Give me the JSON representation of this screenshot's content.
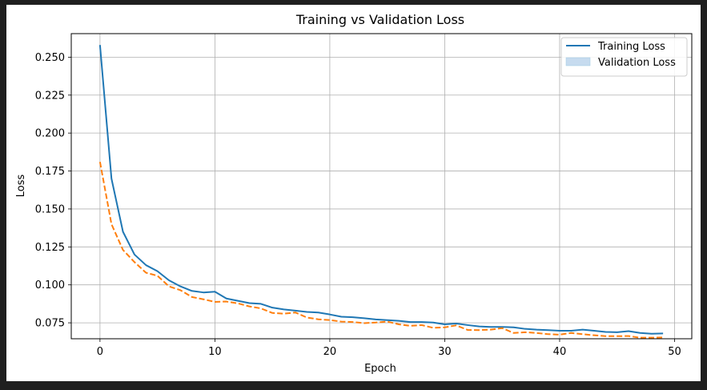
{
  "chart_data": {
    "type": "line",
    "title": "Training vs Validation Loss",
    "xlabel": "Epoch",
    "ylabel": "Loss",
    "xlim": [
      -2.5,
      51.5
    ],
    "ylim": [
      0.0645,
      0.2655
    ],
    "xticks": [
      0,
      10,
      20,
      30,
      40,
      50
    ],
    "yticks": [
      0.075,
      0.1,
      0.125,
      0.15,
      0.175,
      0.2,
      0.225,
      0.25
    ],
    "ytick_labels": [
      "0.075",
      "0.100",
      "0.125",
      "0.150",
      "0.175",
      "0.200",
      "0.225",
      "0.250"
    ],
    "xtick_labels": [
      "0",
      "10",
      "20",
      "30",
      "40",
      "50"
    ],
    "grid": true,
    "legend_position": "top-right",
    "legend": [
      {
        "label": "Training Loss",
        "marker": "line",
        "color": "#1f77b4"
      },
      {
        "label": "Validation Loss",
        "marker": "patch",
        "color": "#c6dbef"
      }
    ],
    "x": [
      0,
      1,
      2,
      3,
      4,
      5,
      6,
      7,
      8,
      9,
      10,
      11,
      12,
      13,
      14,
      15,
      16,
      17,
      18,
      19,
      20,
      21,
      22,
      23,
      24,
      25,
      26,
      27,
      28,
      29,
      30,
      31,
      32,
      33,
      34,
      35,
      36,
      37,
      38,
      39,
      40,
      41,
      42,
      43,
      44,
      45,
      46,
      47,
      48,
      49
    ],
    "series": [
      {
        "name": "Training Loss",
        "color": "#1f77b4",
        "style": "solid",
        "values": [
          0.258,
          0.17,
          0.135,
          0.12,
          0.113,
          0.109,
          0.103,
          0.099,
          0.096,
          0.095,
          0.0955,
          0.091,
          0.0895,
          0.088,
          0.0875,
          0.085,
          0.0838,
          0.083,
          0.0822,
          0.0818,
          0.0805,
          0.079,
          0.0787,
          0.078,
          0.0772,
          0.0768,
          0.0763,
          0.0755,
          0.0755,
          0.0752,
          0.074,
          0.0745,
          0.0735,
          0.0726,
          0.0723,
          0.0723,
          0.072,
          0.071,
          0.0705,
          0.0702,
          0.0698,
          0.0698,
          0.0705,
          0.0698,
          0.069,
          0.0688,
          0.0695,
          0.0683,
          0.0678,
          0.068
        ]
      },
      {
        "name": "Validation Loss",
        "color": "#ff7f0e",
        "style": "dashed",
        "values": [
          0.181,
          0.14,
          0.123,
          0.115,
          0.108,
          0.106,
          0.099,
          0.0965,
          0.092,
          0.0905,
          0.0888,
          0.089,
          0.0878,
          0.0858,
          0.0845,
          0.0815,
          0.081,
          0.0818,
          0.0785,
          0.0773,
          0.0768,
          0.0758,
          0.0755,
          0.0748,
          0.0752,
          0.0758,
          0.074,
          0.073,
          0.0735,
          0.0717,
          0.072,
          0.0733,
          0.0703,
          0.0702,
          0.0705,
          0.0715,
          0.0683,
          0.0688,
          0.0683,
          0.0675,
          0.0672,
          0.0683,
          0.0675,
          0.0668,
          0.0662,
          0.0662,
          0.0663,
          0.0652,
          0.0652,
          0.0654
        ]
      }
    ]
  }
}
